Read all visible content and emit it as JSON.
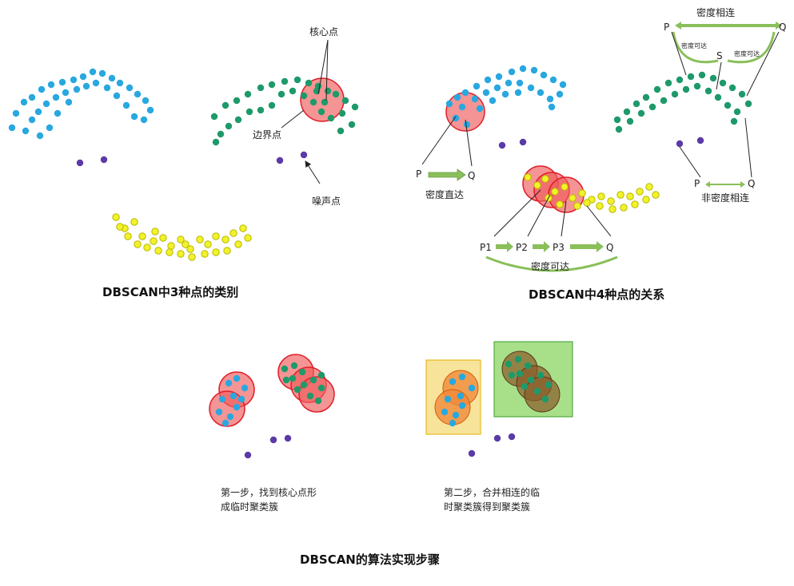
{
  "captions": {
    "types": "DBSCAN中3种点的类别",
    "relations": "DBSCAN中4种点的关系",
    "algorithm": "DBSCAN的算法实现步骤"
  },
  "labels": {
    "core": "核心点",
    "border": "边界点",
    "noise": "噪声点",
    "p": "P",
    "q": "Q",
    "s": "S",
    "p1": "P1",
    "p2": "P2",
    "p3": "P3",
    "direct": "密度直达",
    "reachable": "密度可达",
    "reachable_small": "密度可达",
    "connected": "密度相连",
    "not_connected": "非密度相连"
  },
  "steps": {
    "step1": [
      "第一步，找到核心点形",
      "成临时聚类簇"
    ],
    "step2": [
      "第二步，合并相连的临",
      "时聚类簇得到聚类簇"
    ]
  },
  "colors": {
    "blue": "#29a8e0",
    "green": "#1e9a6a",
    "yellow": "#f2f22a",
    "purple": "#5b3aa8",
    "red_fill": "#f0505a",
    "red_stroke": "#e0202a",
    "orange": "#f08a3a",
    "brown": "#8a5a2a",
    "arrow_green": "#8abf5a"
  }
}
